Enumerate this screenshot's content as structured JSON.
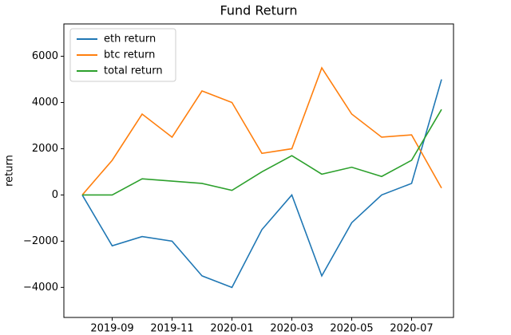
{
  "chart_data": {
    "type": "line",
    "title": "Fund Return",
    "ylabel": "return",
    "categories": [
      null,
      "2019-09",
      null,
      "2019-11",
      null,
      "2020-01",
      null,
      "2020-03",
      null,
      "2020-05",
      null,
      "2020-07",
      null
    ],
    "series": [
      {
        "name": "eth return",
        "color": "#1f77b4",
        "values": [
          0,
          -2200,
          -1800,
          -2000,
          -3500,
          -4000,
          -1500,
          0,
          -3500,
          -1200,
          0,
          500,
          5000
        ]
      },
      {
        "name": "btc return",
        "color": "#ff7f0e",
        "values": [
          0,
          1500,
          3500,
          2500,
          4500,
          4000,
          1800,
          2000,
          5500,
          3500,
          2500,
          2600,
          300
        ]
      },
      {
        "name": "total return",
        "color": "#2ca02c",
        "values": [
          0,
          0,
          700,
          600,
          500,
          200,
          1000,
          1700,
          900,
          1200,
          800,
          1500,
          3700
        ]
      }
    ],
    "ylim": [
      -5300,
      7400
    ],
    "yticks": [
      {
        "value": -4000,
        "label": "−4000"
      },
      {
        "value": -2000,
        "label": "−2000"
      },
      0,
      2000,
      4000,
      6000
    ],
    "grid": false,
    "legend": "upper-left"
  }
}
